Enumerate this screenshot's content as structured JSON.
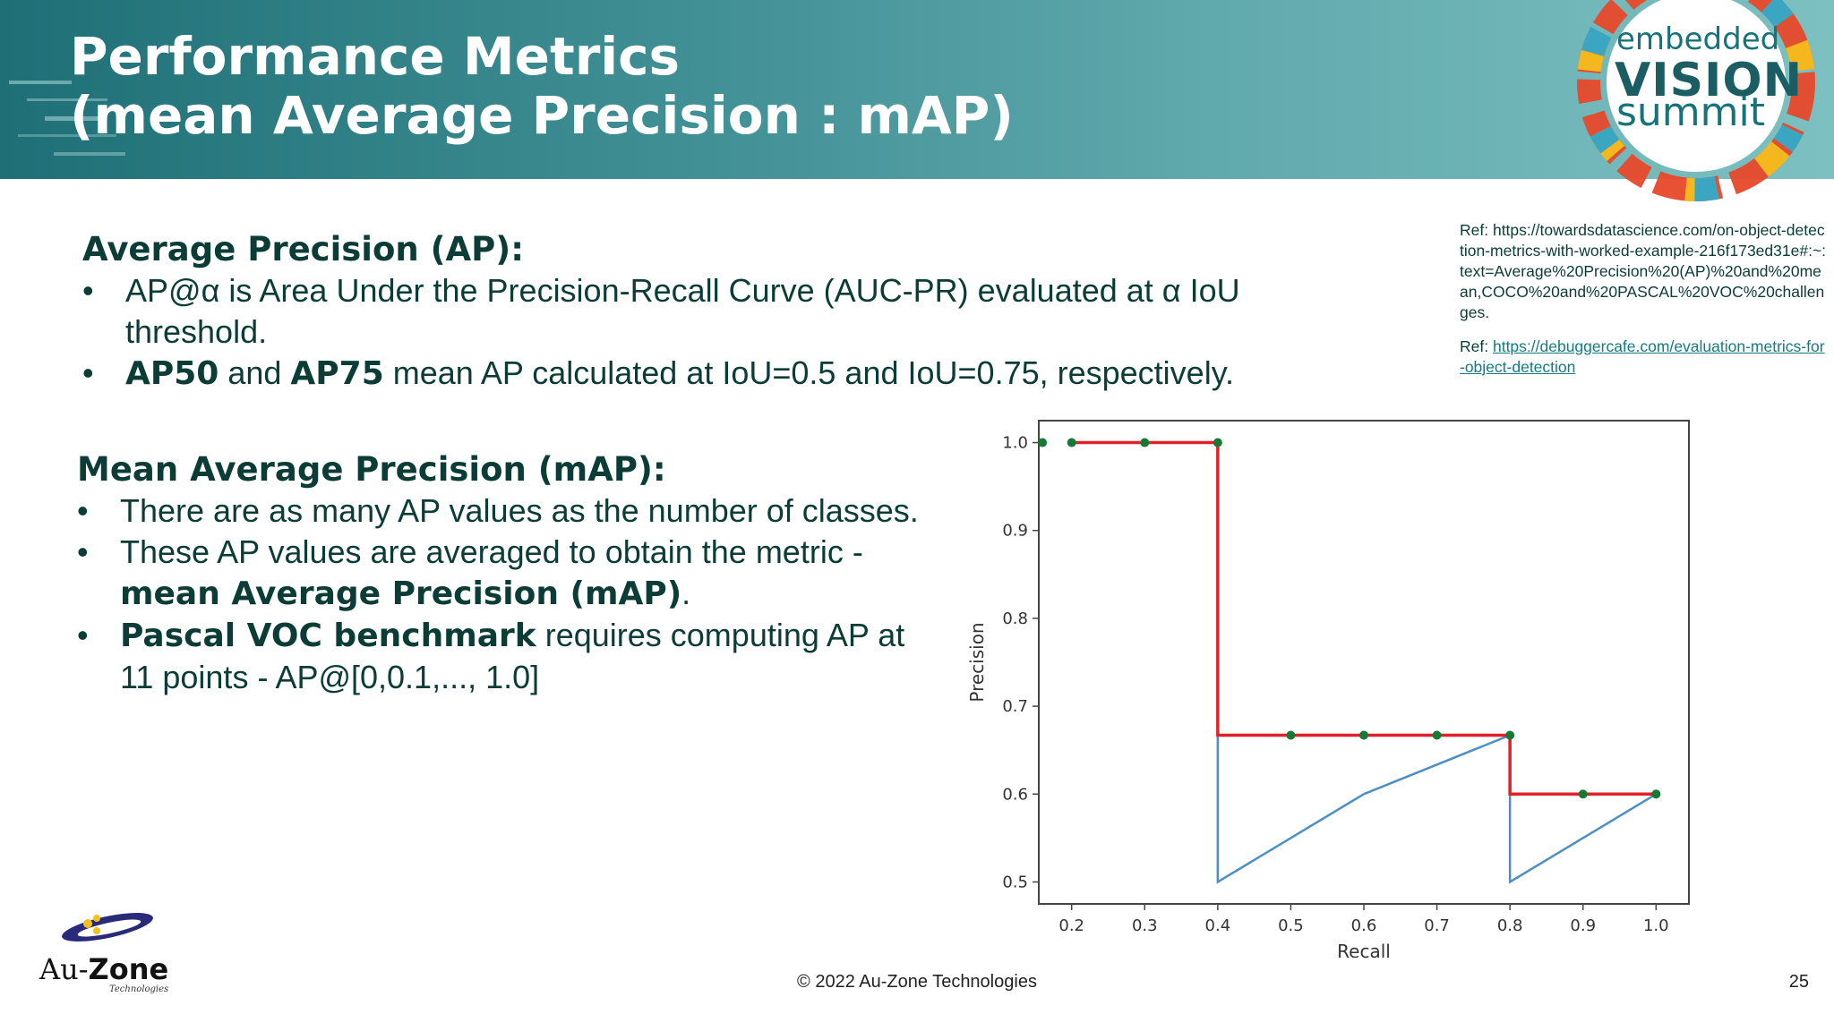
{
  "header": {
    "title_line1": "Performance Metrics",
    "title_line2": "(mean Average Precision : mAP)"
  },
  "logo": {
    "word1": "embedded",
    "word2": "VISION",
    "word3": "summit"
  },
  "refs": {
    "ref1": "Ref: https://towardsdatascience.com/on-object-detection-metrics-with-worked-example-216f173ed31e#:~:text=Average%20Precision%20(AP)%20and%20mean,COCO%20and%20PASCAL%20VOC%20challenges.",
    "ref2_prefix": "Ref: ",
    "ref2_link": "https://debuggercafe.com/evaluation-metrics-for-object-detection"
  },
  "ap_section": {
    "heading": "Average Precision (AP):",
    "bullet1": "AP@α is Area Under the Precision-Recall Curve (AUC-PR) evaluated at α IoU threshold.",
    "bullet2_bold1": "AP50",
    "bullet2_mid": " and ",
    "bullet2_bold2": "AP75",
    "bullet2_rest": " mean AP calculated at IoU=0.5 and IoU=0.75, respectively."
  },
  "map_section": {
    "heading": "Mean Average Precision (mAP):",
    "bullet1": "There are as many AP values as the number of classes.",
    "bullet2_text": "These AP values are averaged to obtain the metric - ",
    "bullet2_bold": "mean Average Precision (mAP)",
    "bullet2_end": ".",
    "bullet3_bold": "Pascal VOC benchmark",
    "bullet3_rest": " requires computing AP at 11 points - AP@[0,0.1,..., 1.0]"
  },
  "chart_data": {
    "type": "line",
    "xlabel": "Recall",
    "ylabel": "Precision",
    "xlim": [
      0.155,
      1.045
    ],
    "ylim": [
      0.475,
      1.025
    ],
    "xticks": [
      0.2,
      0.3,
      0.4,
      0.5,
      0.6,
      0.7,
      0.8,
      0.9,
      1.0
    ],
    "xtick_labels": [
      "0.2",
      "0.3",
      "0.4",
      "0.5",
      "0.6",
      "0.7",
      "0.8",
      "0.9",
      "1.0"
    ],
    "yticks": [
      0.5,
      0.6,
      0.7,
      0.8,
      0.9,
      1.0
    ],
    "ytick_labels": [
      "0.5",
      "0.6",
      "0.7",
      "0.8",
      "0.9",
      "1.0"
    ],
    "grid": false,
    "series": [
      {
        "color": "#4b8fc4",
        "x": [
          0.2,
          0.4,
          0.4,
          0.6,
          0.8,
          0.8,
          1.0
        ],
        "y": [
          1.0,
          1.0,
          0.5,
          0.6,
          0.667,
          0.5,
          0.6
        ]
      },
      {
        "color": "#e0202a",
        "x": [
          0.2,
          0.4,
          0.4,
          0.8,
          0.8,
          1.0
        ],
        "y": [
          1.0,
          1.0,
          0.667,
          0.667,
          0.6,
          0.6
        ]
      },
      {
        "type": "scatter",
        "color": "#167a34",
        "x": [
          0.16,
          0.2,
          0.3,
          0.4,
          0.5,
          0.6,
          0.7,
          0.8,
          0.9,
          1.0
        ],
        "y": [
          1.0,
          1.0,
          1.0,
          1.0,
          0.667,
          0.667,
          0.667,
          0.667,
          0.6,
          0.6
        ]
      }
    ]
  },
  "footer": {
    "copyright": "© 2022 Au-Zone Technologies",
    "page_number": "25"
  },
  "auzone": {
    "name_prefix": "Au-",
    "name_bold": "Zone",
    "sub": "Technologies"
  }
}
